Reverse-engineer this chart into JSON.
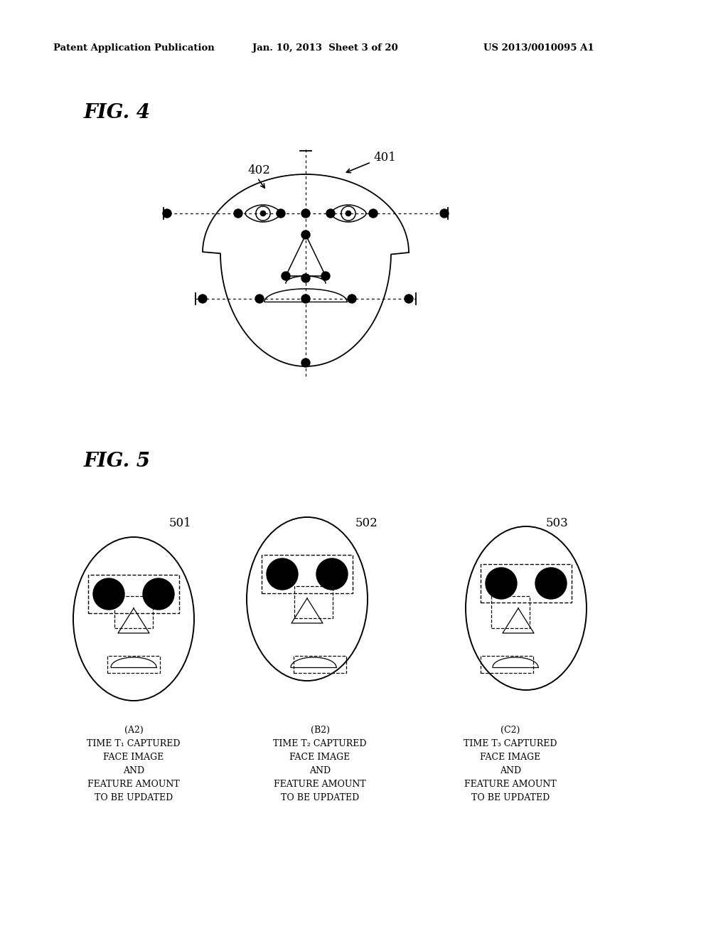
{
  "bg_color": "#ffffff",
  "header_left": "Patent Application Publication",
  "header_mid": "Jan. 10, 2013  Sheet 3 of 20",
  "header_right": "US 2013/0010095 A1",
  "fig4_label": "FIG. 4",
  "fig5_label": "FIG. 5",
  "label_401": "401",
  "label_402": "402",
  "label_501": "501",
  "label_502": "502",
  "label_503": "503",
  "caption_A2": "(A2)\nTIME T₁ CAPTURED\nFACE IMAGE\nAND\nFEATURE AMOUNT\nTO BE UPDATED",
  "caption_B2": "(B2)\nTIME T₂ CAPTURED\nFACE IMAGE\nAND\nFEATURE AMOUNT\nTO BE UPDATED",
  "caption_C2": "(C2)\nTIME T₃ CAPTURED\nFACE IMAGE\nAND\nFEATURE AMOUNT\nTO BE UPDATED"
}
